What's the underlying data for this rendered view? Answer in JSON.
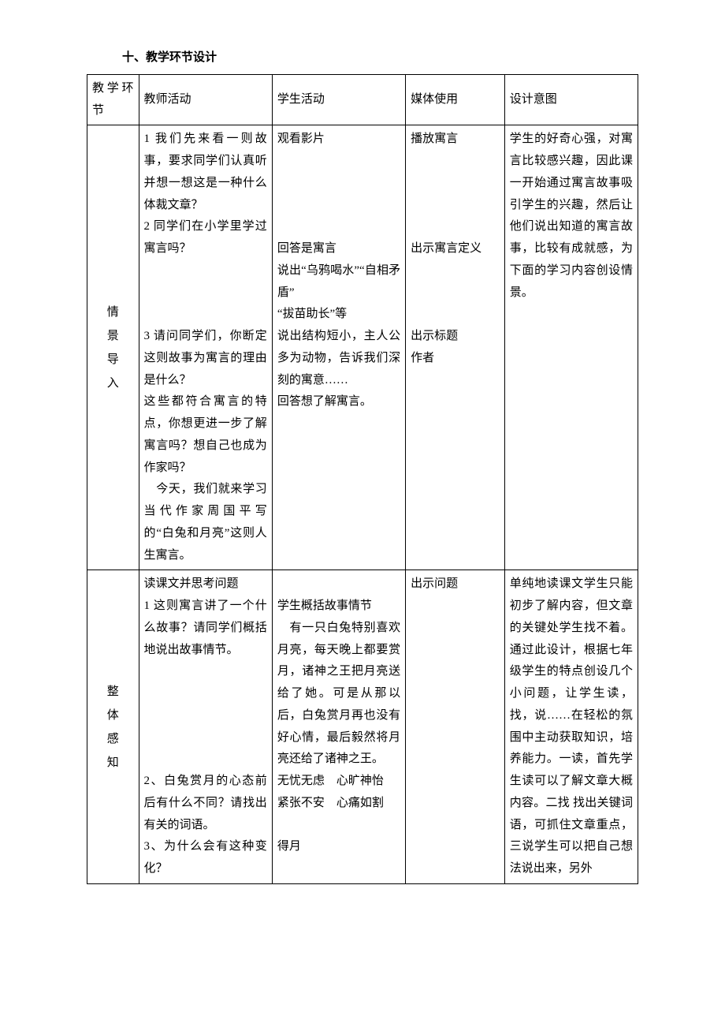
{
  "heading": "十、教学环节设计",
  "header": {
    "stage": "教学环节",
    "teacher": "教师活动",
    "student": "学生活动",
    "media": "媒体使用",
    "intent": "设计意图"
  },
  "row1": {
    "stage": {
      "c1": "情",
      "c2": "景",
      "c3": "导",
      "c4": "入"
    },
    "teacher": {
      "p1": "1 我们先来看一则故事，要求同学们认真听并想一想这是一种什么体裁文章？",
      "p2": "2 同学们在小学里学过寓言吗？",
      "gap1": "　",
      "gap2": "　",
      "gap3": "　",
      "p3": "3 请问同学们，你断定这则故事为寓言的理由是什么？",
      "p4": "这些都符合寓言的特点，你想更进一步了解寓言吗？想自己也成为作家吗？",
      "p5": "　今天，我们就来学习当代作家周国平写的“白兔和月亮”这则人生寓言。"
    },
    "student": {
      "s1": "观看影片",
      "gap1": "　",
      "gap2": "　",
      "gap3": "　",
      "gap4": "　",
      "s2": "回答是寓言",
      "s3": "说出“乌鸦喝水”“自相矛盾”",
      "s4": "“拔苗助长”等",
      "s5": "说出结构短小，主人公多为动物，告诉我们深刻的寓意……",
      "s6": "回答想了解寓言。"
    },
    "media": {
      "m1": "播放寓言",
      "gap1": "　",
      "gap2": "　",
      "gap3": "　",
      "gap4": "　",
      "m2": "出示寓言定义",
      "gap5": "　",
      "gap6": "　",
      "gap7": "　",
      "m3": "出示标题",
      "m4": "作者"
    },
    "intent": {
      "i1": "学生的好奇心强，对寓言比较感兴趣，因此课一开始通过寓言故事吸引学生的兴趣，然后让他们说出知道的寓言故事，比较有成就感，为下面的学习内容创设情景。"
    }
  },
  "row2": {
    "stage": {
      "c1": "整",
      "c2": "体",
      "c3": "感",
      "c4": "知"
    },
    "teacher": {
      "p1": "读课文并思考问题",
      "p2": "1 这则寓言讲了一个什么故事？请同学们概括地说出故事情节。",
      "gap1": "　",
      "gap2": "　",
      "gap3": "　",
      "gap4": "　",
      "gap5": "　",
      "p3": "2、白兔赏月的心态前后有什么不同？请找出有关的词语。",
      "p4": "3、为什么会有这种变化？"
    },
    "student": {
      "gap1": "　",
      "s1": "学生概括故事情节",
      "s2": "　有一只白兔特别喜欢月亮，每天晚上都要赏月，诸神之王把月亮送给了她。可是从那以后，白兔赏月再也没有好心情，最后毅然将月亮还给了诸神之王。",
      "s3": "无忧无虑　心旷神怡",
      "s4": "紧张不安　心痛如割",
      "gap2": "　",
      "s5": "得月"
    },
    "media": {
      "m1": "出示问题"
    },
    "intent": {
      "i1": "单纯地读课文学生只能初步了解内容，但文章的关键处学生找不着。通过此设计，根据七年级学生的特点创设几个小问题，让学生读，找，说……在轻松的氛围中主动获取知识，培养能力。一读，首先学生读可以了解文章大概内容。二找 找出关键词语，可抓住文章重点，三说学生可以把自己想法说出来，另外"
    }
  }
}
